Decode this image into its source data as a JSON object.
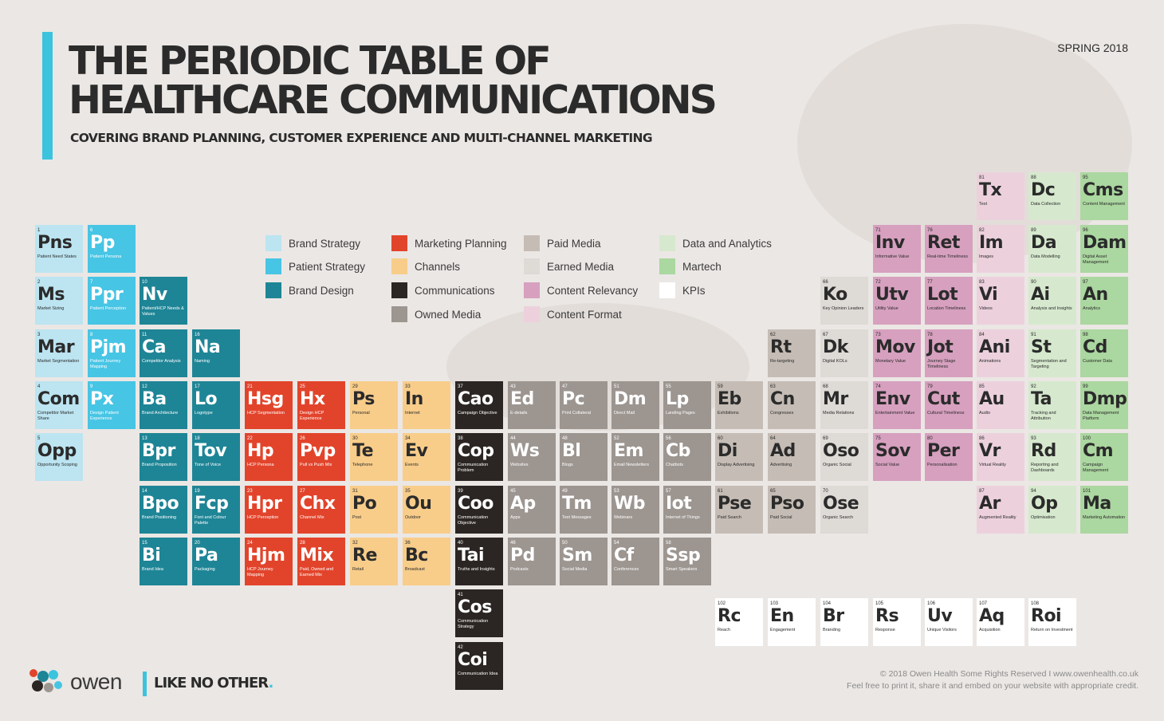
{
  "header": {
    "title_line1": "THE PERIODIC TABLE OF",
    "title_line2": "HEALTHCARE COMMUNICATIONS",
    "subtitle": "COVERING BRAND PLANNING, CUSTOMER EXPERIENCE AND MULTI-CHANNEL MARKETING",
    "edition": "SPRING 2018"
  },
  "colors": {
    "bs": "#bce4f1",
    "ps": "#47c5e5",
    "bd": "#1e8596",
    "mp": "#e2442b",
    "ch": "#f8cd8a",
    "co": "#2b2623",
    "om": "#9c9590",
    "pm": "#c5bcb5",
    "em": "#dedad6",
    "cr": "#d7a0bf",
    "cf": "#ecd1dd",
    "da": "#d6e9ce",
    "mt": "#abd7a0",
    "kp": "#ffffff"
  },
  "legend": [
    {
      "key": "bs",
      "label": "Brand Strategy"
    },
    {
      "key": "ps",
      "label": "Patient Strategy"
    },
    {
      "key": "bd",
      "label": "Brand Design"
    },
    {
      "key": "mp",
      "label": "Marketing Planning"
    },
    {
      "key": "ch",
      "label": "Channels"
    },
    {
      "key": "co",
      "label": "Communications"
    },
    {
      "key": "om",
      "label": "Owned Media"
    },
    {
      "key": "pm",
      "label": "Paid Media"
    },
    {
      "key": "em",
      "label": "Earned Media"
    },
    {
      "key": "cr",
      "label": "Content Relevancy"
    },
    {
      "key": "cf",
      "label": "Content Format"
    },
    {
      "key": "da",
      "label": "Data and Analytics"
    },
    {
      "key": "mt",
      "label": "Martech"
    },
    {
      "key": "kp",
      "label": "KPIs"
    }
  ],
  "elements": [
    {
      "n": "1",
      "s": "Pns",
      "name": "Patient Need States",
      "cat": "bs"
    },
    {
      "n": "2",
      "s": "Ms",
      "name": "Market Sizing",
      "cat": "bs"
    },
    {
      "n": "3",
      "s": "Mar",
      "name": "Market Segmentation",
      "cat": "bs"
    },
    {
      "n": "4",
      "s": "Com",
      "name": "Competitor Market Share",
      "cat": "bs"
    },
    {
      "n": "5",
      "s": "Opp",
      "name": "Opportunity Scoping",
      "cat": "bs"
    },
    {
      "n": "6",
      "s": "Pp",
      "name": "Patient Persona",
      "cat": "ps"
    },
    {
      "n": "7",
      "s": "Ppr",
      "name": "Patient Perception",
      "cat": "ps"
    },
    {
      "n": "8",
      "s": "Pjm",
      "name": "Patient Journey Mapping",
      "cat": "ps"
    },
    {
      "n": "9",
      "s": "Px",
      "name": "Design Patient Experience",
      "cat": "ps"
    },
    {
      "n": "10",
      "s": "Nv",
      "name": "Patient/HCP Needs & Values",
      "cat": "bd"
    },
    {
      "n": "11",
      "s": "Ca",
      "name": "Competitor Analysis",
      "cat": "bd"
    },
    {
      "n": "12",
      "s": "Ba",
      "name": "Brand Architecture",
      "cat": "bd"
    },
    {
      "n": "13",
      "s": "Bpr",
      "name": "Brand Proposition",
      "cat": "bd"
    },
    {
      "n": "14",
      "s": "Bpo",
      "name": "Brand Positioning",
      "cat": "bd"
    },
    {
      "n": "15",
      "s": "Bi",
      "name": "Brand Idea",
      "cat": "bd"
    },
    {
      "n": "16",
      "s": "Na",
      "name": "Naming",
      "cat": "bd"
    },
    {
      "n": "17",
      "s": "Lo",
      "name": "Logotype",
      "cat": "bd"
    },
    {
      "n": "18",
      "s": "Tov",
      "name": "Tone of Voice",
      "cat": "bd"
    },
    {
      "n": "19",
      "s": "Fcp",
      "name": "Font and Colour Palette",
      "cat": "bd"
    },
    {
      "n": "20",
      "s": "Pa",
      "name": "Packaging",
      "cat": "bd"
    },
    {
      "n": "21",
      "s": "Hsg",
      "name": "HCP Segmentation",
      "cat": "mp"
    },
    {
      "n": "22",
      "s": "Hp",
      "name": "HCP Persona",
      "cat": "mp"
    },
    {
      "n": "23",
      "s": "Hpr",
      "name": "HCP Perception",
      "cat": "mp"
    },
    {
      "n": "24",
      "s": "Hjm",
      "name": "HCP Journey Mapping",
      "cat": "mp"
    },
    {
      "n": "25",
      "s": "Hx",
      "name": "Design HCP Experience",
      "cat": "mp"
    },
    {
      "n": "26",
      "s": "Pvp",
      "name": "Pull vs Push Mix",
      "cat": "mp"
    },
    {
      "n": "27",
      "s": "Chx",
      "name": "Channel Mix",
      "cat": "mp"
    },
    {
      "n": "28",
      "s": "Mix",
      "name": "Paid, Owned and Earned Mix",
      "cat": "mp"
    },
    {
      "n": "29",
      "s": "Ps",
      "name": "Personal",
      "cat": "ch"
    },
    {
      "n": "30",
      "s": "Te",
      "name": "Telephone",
      "cat": "ch"
    },
    {
      "n": "31",
      "s": "Po",
      "name": "Post",
      "cat": "ch"
    },
    {
      "n": "32",
      "s": "Re",
      "name": "Retail",
      "cat": "ch"
    },
    {
      "n": "33",
      "s": "In",
      "name": "Internet",
      "cat": "ch"
    },
    {
      "n": "34",
      "s": "Ev",
      "name": "Events",
      "cat": "ch"
    },
    {
      "n": "35",
      "s": "Ou",
      "name": "Outdoor",
      "cat": "ch"
    },
    {
      "n": "36",
      "s": "Bc",
      "name": "Broadcast",
      "cat": "ch"
    },
    {
      "n": "37",
      "s": "Cao",
      "name": "Campaign Objective",
      "cat": "co"
    },
    {
      "n": "38",
      "s": "Cop",
      "name": "Communication Problem",
      "cat": "co"
    },
    {
      "n": "39",
      "s": "Coo",
      "name": "Communication Objective",
      "cat": "co"
    },
    {
      "n": "40",
      "s": "Tai",
      "name": "Truths and Insights",
      "cat": "co"
    },
    {
      "n": "41",
      "s": "Cos",
      "name": "Communication Strategy",
      "cat": "co"
    },
    {
      "n": "42",
      "s": "Coi",
      "name": "Communication Idea",
      "cat": "co"
    },
    {
      "n": "43",
      "s": "Ed",
      "name": "E-details",
      "cat": "om"
    },
    {
      "n": "44",
      "s": "Ws",
      "name": "Websites",
      "cat": "om"
    },
    {
      "n": "45",
      "s": "Ap",
      "name": "Apps",
      "cat": "om"
    },
    {
      "n": "46",
      "s": "Pd",
      "name": "Podcasts",
      "cat": "om"
    },
    {
      "n": "47",
      "s": "Pc",
      "name": "Print Collateral",
      "cat": "om"
    },
    {
      "n": "48",
      "s": "Bl",
      "name": "Blogs",
      "cat": "om"
    },
    {
      "n": "49",
      "s": "Tm",
      "name": "Text Messages",
      "cat": "om"
    },
    {
      "n": "50",
      "s": "Sm",
      "name": "Social Media",
      "cat": "om"
    },
    {
      "n": "51",
      "s": "Dm",
      "name": "Direct Mail",
      "cat": "om"
    },
    {
      "n": "52",
      "s": "Em",
      "name": "Email Newsletters",
      "cat": "om"
    },
    {
      "n": "53",
      "s": "Wb",
      "name": "Webinars",
      "cat": "om"
    },
    {
      "n": "54",
      "s": "Cf",
      "name": "Conferences",
      "cat": "om"
    },
    {
      "n": "55",
      "s": "Lp",
      "name": "Landing Pages",
      "cat": "om"
    },
    {
      "n": "56",
      "s": "Cb",
      "name": "Chatbots",
      "cat": "om"
    },
    {
      "n": "57",
      "s": "Iot",
      "name": "Internet of Things",
      "cat": "om"
    },
    {
      "n": "58",
      "s": "Ssp",
      "name": "Smart Speakers",
      "cat": "om"
    },
    {
      "n": "59",
      "s": "Eb",
      "name": "Exhibitions",
      "cat": "pm"
    },
    {
      "n": "60",
      "s": "Di",
      "name": "Display Advertising",
      "cat": "pm"
    },
    {
      "n": "61",
      "s": "Pse",
      "name": "Paid Search",
      "cat": "pm"
    },
    {
      "n": "62",
      "s": "Rt",
      "name": "Re-targeting",
      "cat": "pm"
    },
    {
      "n": "63",
      "s": "Cn",
      "name": "Congresses",
      "cat": "pm"
    },
    {
      "n": "64",
      "s": "Ad",
      "name": "Advertising",
      "cat": "pm"
    },
    {
      "n": "65",
      "s": "Pso",
      "name": "Paid Social",
      "cat": "pm"
    },
    {
      "n": "66",
      "s": "Ko",
      "name": "Key Opinion Leaders",
      "cat": "em"
    },
    {
      "n": "67",
      "s": "Dk",
      "name": "Digital KOLs",
      "cat": "em"
    },
    {
      "n": "68",
      "s": "Mr",
      "name": "Media Relations",
      "cat": "em"
    },
    {
      "n": "69",
      "s": "Oso",
      "name": "Organic Social",
      "cat": "em"
    },
    {
      "n": "70",
      "s": "Ose",
      "name": "Organic Search",
      "cat": "em"
    },
    {
      "n": "71",
      "s": "Inv",
      "name": "Informative Value",
      "cat": "cr"
    },
    {
      "n": "72",
      "s": "Utv",
      "name": "Utility Value",
      "cat": "cr"
    },
    {
      "n": "73",
      "s": "Mov",
      "name": "Monetary Value",
      "cat": "cr"
    },
    {
      "n": "74",
      "s": "Env",
      "name": "Entertainment Value",
      "cat": "cr"
    },
    {
      "n": "75",
      "s": "Sov",
      "name": "Social Value",
      "cat": "cr"
    },
    {
      "n": "76",
      "s": "Ret",
      "name": "Real-time Timeliness",
      "cat": "cr"
    },
    {
      "n": "77",
      "s": "Lot",
      "name": "Location Timeliness",
      "cat": "cr"
    },
    {
      "n": "78",
      "s": "Jot",
      "name": "Journey Stage Timeliness",
      "cat": "cr"
    },
    {
      "n": "79",
      "s": "Cut",
      "name": "Cultural Timeliness",
      "cat": "cr"
    },
    {
      "n": "80",
      "s": "Per",
      "name": "Personalisation",
      "cat": "cr"
    },
    {
      "n": "81",
      "s": "Tx",
      "name": "Text",
      "cat": "cf"
    },
    {
      "n": "82",
      "s": "Im",
      "name": "Images",
      "cat": "cf"
    },
    {
      "n": "83",
      "s": "Vi",
      "name": "Videos",
      "cat": "cf"
    },
    {
      "n": "84",
      "s": "Ani",
      "name": "Animations",
      "cat": "cf"
    },
    {
      "n": "85",
      "s": "Au",
      "name": "Audio",
      "cat": "cf"
    },
    {
      "n": "86",
      "s": "Vr",
      "name": "Virtual Reality",
      "cat": "cf"
    },
    {
      "n": "87",
      "s": "Ar",
      "name": "Augmented Reality",
      "cat": "cf"
    },
    {
      "n": "88",
      "s": "Dc",
      "name": "Data Collection",
      "cat": "da"
    },
    {
      "n": "89",
      "s": "Da",
      "name": "Data Modelling",
      "cat": "da"
    },
    {
      "n": "90",
      "s": "Ai",
      "name": "Analysis and Insights",
      "cat": "da"
    },
    {
      "n": "91",
      "s": "St",
      "name": "Segmentation and Targeting",
      "cat": "da"
    },
    {
      "n": "92",
      "s": "Ta",
      "name": "Tracking and Attribution",
      "cat": "da"
    },
    {
      "n": "93",
      "s": "Rd",
      "name": "Reporting and Dashboards",
      "cat": "da"
    },
    {
      "n": "94",
      "s": "Op",
      "name": "Optimisation",
      "cat": "da"
    },
    {
      "n": "95",
      "s": "Cms",
      "name": "Content Management",
      "cat": "mt"
    },
    {
      "n": "96",
      "s": "Dam",
      "name": "Digital Asset Management",
      "cat": "mt"
    },
    {
      "n": "97",
      "s": "An",
      "name": "Analytics",
      "cat": "mt"
    },
    {
      "n": "98",
      "s": "Cd",
      "name": "Customer Data",
      "cat": "mt"
    },
    {
      "n": "99",
      "s": "Dmp",
      "name": "Data Management Platform",
      "cat": "mt"
    },
    {
      "n": "100",
      "s": "Cm",
      "name": "Campaign Management",
      "cat": "mt"
    },
    {
      "n": "101",
      "s": "Ma",
      "name": "Marketing Automation",
      "cat": "mt"
    },
    {
      "n": "102",
      "s": "Rc",
      "name": "Reach",
      "cat": "kp"
    },
    {
      "n": "103",
      "s": "En",
      "name": "Engagement",
      "cat": "kp"
    },
    {
      "n": "104",
      "s": "Br",
      "name": "Branding",
      "cat": "kp"
    },
    {
      "n": "105",
      "s": "Rs",
      "name": "Response",
      "cat": "kp"
    },
    {
      "n": "106",
      "s": "Uv",
      "name": "Unique Visitors",
      "cat": "kp"
    },
    {
      "n": "107",
      "s": "Aq",
      "name": "Acquisition",
      "cat": "kp"
    },
    {
      "n": "108",
      "s": "Roi",
      "name": "Return on Investment",
      "cat": "kp"
    }
  ],
  "footer": {
    "logo_word": "owen",
    "tagline": "LIKE NO OTHER",
    "tagline_dot": ".",
    "copyright": "© 2018 Owen Health Some Rights Reserved  I  www.owenhealth.co.uk",
    "note": "Feel free to print it, share it and embed on your website with appropriate credit."
  }
}
